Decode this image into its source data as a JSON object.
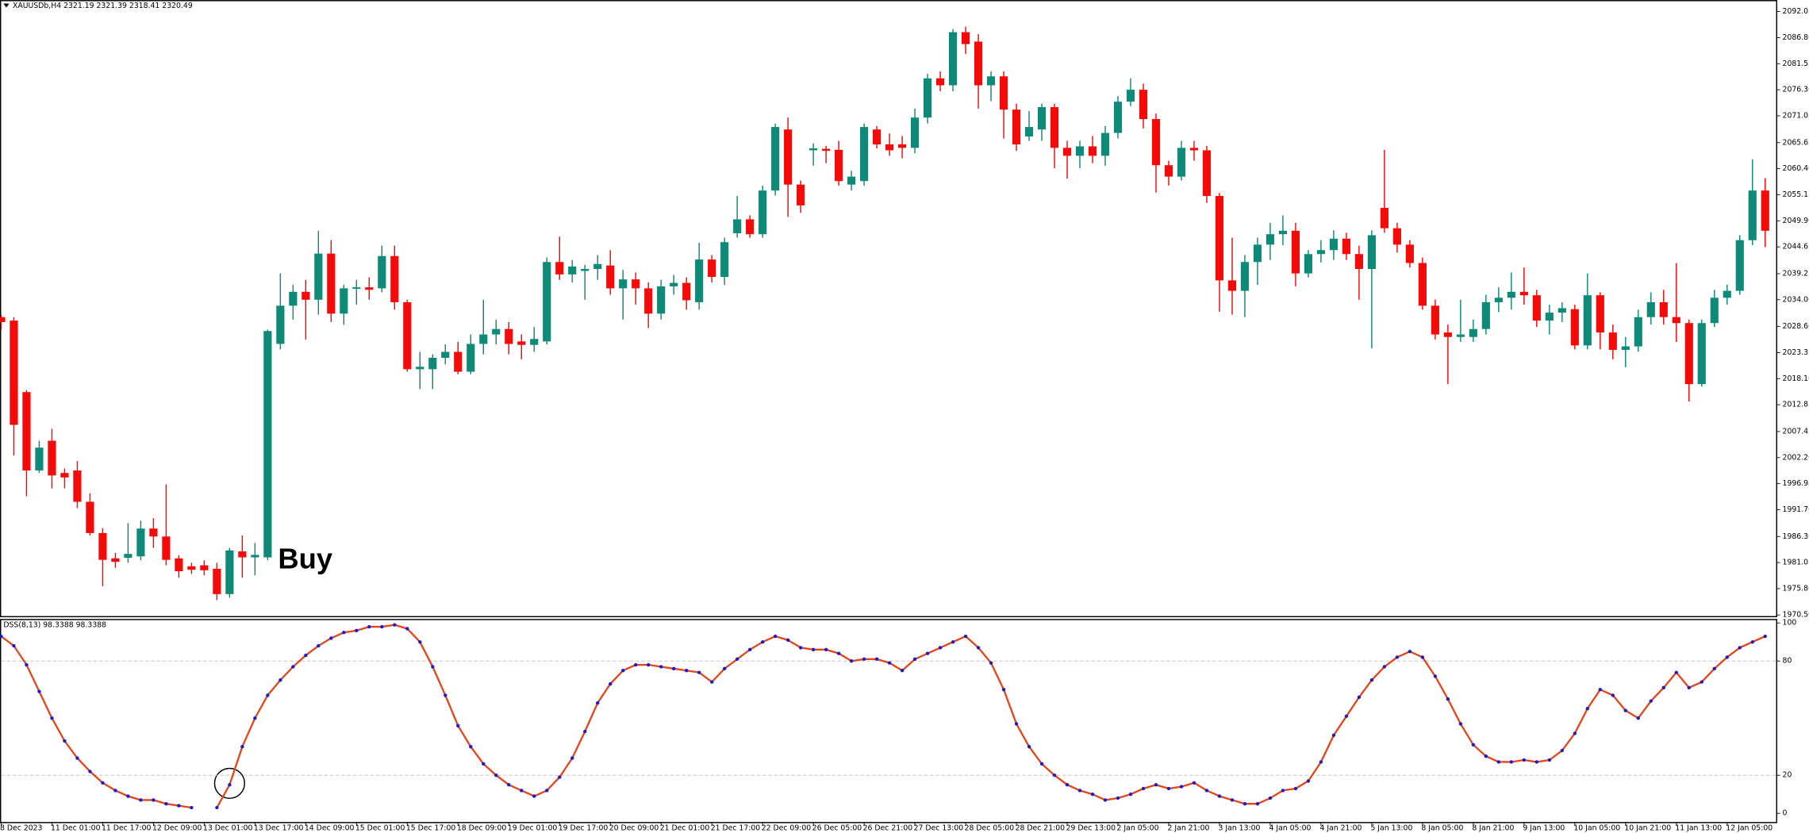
{
  "chart_data": [
    {
      "type": "candlestick",
      "title": "XAUUSDb,H4  2321.19 2321.39 2318.41 2320.49",
      "annotations": [
        "Buy"
      ],
      "up_color": "#0f8a78",
      "down_color": "#f50a0a",
      "categories": [
        "8 Dec 2023",
        null,
        null,
        null,
        "11 Dec 01:00",
        null,
        null,
        null,
        "11 Dec 17:00",
        null,
        null,
        null,
        "12 Dec 09:00",
        null,
        null,
        null,
        "13 Dec 01:00",
        null,
        null,
        null,
        "13 Dec 17:00",
        null,
        null,
        null,
        "14 Dec 09:00",
        null,
        null,
        null,
        "15 Dec 01:00",
        null,
        null,
        null,
        "15 Dec 17:00",
        null,
        null,
        null,
        "18 Dec 09:00",
        null,
        null,
        null,
        "19 Dec 01:00",
        null,
        null,
        null,
        "19 Dec 17:00",
        null,
        null,
        null,
        "20 Dec 09:00",
        null,
        null,
        null,
        "21 Dec 01:00",
        null,
        null,
        null,
        "21 Dec 17:00",
        null,
        null,
        null,
        "22 Dec 09:00",
        null,
        null,
        null,
        "26 Dec 05:00",
        null,
        null,
        null,
        "26 Dec 21:00",
        null,
        null,
        null,
        "27 Dec 13:00",
        null,
        null,
        null,
        "28 Dec 05:00",
        null,
        null,
        null,
        "28 Dec 21:00",
        null,
        null,
        null,
        "29 Dec 13:00",
        null,
        null,
        null,
        "2 Jan 05:00",
        null,
        null,
        null,
        "2 Jan 21:00",
        null,
        null,
        null,
        "3 Jan 13:00",
        null,
        null,
        null,
        "4 Jan 05:00",
        null,
        null,
        null,
        "4 Jan 21:00",
        null,
        null,
        null,
        "5 Jan 13:00",
        null,
        null,
        null,
        "8 Jan 05:00",
        null,
        null,
        null,
        "8 Jan 21:00",
        null,
        null,
        null,
        "9 Jan 13:00",
        null,
        null,
        null,
        "10 Jan 05:00",
        null,
        null,
        null,
        "10 Jan 21:00",
        null,
        null,
        null,
        "11 Jan 13:00",
        null,
        null,
        null,
        "12 Jan 05:00",
        null,
        null,
        null
      ],
      "open": [
        2030.5,
        2029.8,
        2015.4,
        1999.6,
        2005.6,
        1999.1,
        1999.6,
        1993.3,
        1987.0,
        1981.9,
        1982.0,
        1982.3,
        1987.9,
        1986.3,
        1981.9,
        1980.3,
        1980.5,
        1979.8,
        1974.7,
        1983.3,
        1982.1,
        1982.1,
        2025.1,
        2032.8,
        2035.6,
        2034.0,
        2043.3,
        2031.2,
        2036.2,
        2036.5,
        2036.3,
        2042.8,
        2033.5,
        2020.0,
        2020.0,
        2022.3,
        2023.5,
        2019.5,
        2025.1,
        2027.0,
        2028.1,
        2025.6,
        2024.9,
        2025.6,
        2041.6,
        2039.1,
        2039.8,
        2040.2,
        2040.9,
        2036.3,
        2038.1,
        2036.3,
        2031.2,
        2036.7,
        2037.4,
        2033.5,
        2042.1,
        2038.6,
        2047.4,
        2050.2,
        2047.2,
        2056.0,
        2068.3,
        2057.2,
        2064.1,
        2064.4,
        2064.2,
        2057.2,
        2057.9,
        2068.3,
        2065.3,
        2065.3,
        2064.6,
        2070.7,
        2078.6,
        2077.2,
        2087.9,
        2086.0,
        2077.2,
        2079.0,
        2072.3,
        2066.9,
        2068.3,
        2072.8,
        2064.6,
        2063.0,
        2064.9,
        2063.0,
        2067.6,
        2073.9,
        2076.3,
        2070.4,
        2061.1,
        2058.8,
        2064.6,
        2064.1,
        2054.9,
        2037.9,
        2035.8,
        2041.6,
        2045.1,
        2047.2,
        2047.9,
        2039.3,
        2043.2,
        2044.0,
        2046.3,
        2043.2,
        2040.2,
        2052.5,
        2048.4,
        2045.1,
        2041.4,
        2032.8,
        2027.4,
        2026.5,
        2026.5,
        2028.1,
        2033.5,
        2034.4,
        2035.6,
        2034.9,
        2029.8,
        2031.4,
        2032.1,
        2024.8,
        2034.9,
        2027.4,
        2023.9,
        2024.6,
        2030.5,
        2033.5,
        2030.5,
        2029.3,
        2017.0,
        2029.3,
        2034.4,
        2035.8,
        2046.0,
        2056.0
      ],
      "high": [
        2031.0,
        2030.5,
        2015.8,
        2005.6,
        2008.0,
        2000.0,
        2001.5,
        1995.0,
        1988.0,
        1983.0,
        1989.0,
        1989.5,
        1990.0,
        1996.8,
        1982.5,
        1981.0,
        1981.5,
        1981.0,
        1984.0,
        1986.5,
        1985.0,
        2028.0,
        2039.3,
        2037.0,
        2038.0,
        2047.9,
        2046.0,
        2037.0,
        2038.0,
        2038.5,
        2044.9,
        2044.9,
        2034.0,
        2023.5,
        2023.0,
        2025.0,
        2025.5,
        2027.0,
        2034.0,
        2030.0,
        2029.5,
        2027.0,
        2028.5,
        2042.5,
        2046.7,
        2042.0,
        2041.0,
        2043.0,
        2044.0,
        2040.0,
        2039.5,
        2037.5,
        2038.0,
        2039.0,
        2038.5,
        2045.5,
        2043.0,
        2046.5,
        2054.9,
        2051.0,
        2057.0,
        2069.5,
        2070.7,
        2058.0,
        2065.5,
        2065.0,
        2066.0,
        2060.0,
        2069.5,
        2069.0,
        2067.5,
        2067.0,
        2072.5,
        2079.5,
        2080.0,
        2088.5,
        2089.0,
        2087.5,
        2080.0,
        2080.0,
        2073.5,
        2072.0,
        2073.5,
        2073.5,
        2066.0,
        2066.0,
        2067.0,
        2069.0,
        2075.0,
        2078.6,
        2077.5,
        2071.5,
        2062.0,
        2066.0,
        2066.0,
        2065.0,
        2055.5,
        2046.5,
        2043.0,
        2046.5,
        2049.5,
        2051.0,
        2049.5,
        2044.0,
        2046.0,
        2048.0,
        2047.5,
        2044.9,
        2048.0,
        2064.2,
        2049.5,
        2046.0,
        2042.5,
        2034.0,
        2029.0,
        2034.0,
        2030.0,
        2035.0,
        2036.5,
        2039.5,
        2040.5,
        2036.0,
        2033.0,
        2033.5,
        2033.0,
        2039.3,
        2035.5,
        2029.0,
        2026.5,
        2032.0,
        2035.5,
        2036.0,
        2041.4,
        2030.0,
        2030.0,
        2036.0,
        2037.0,
        2047.0,
        2062.3,
        2058.5
      ],
      "low": [
        2028.0,
        2002.6,
        1994.4,
        1999.1,
        1996.0,
        1996.0,
        1992.0,
        1986.5,
        1976.3,
        1980.0,
        1981.0,
        1981.5,
        1984.0,
        1980.5,
        1978.0,
        1978.8,
        1978.5,
        1973.5,
        1974.0,
        1978.0,
        1978.5,
        1981.5,
        2024.0,
        2030.0,
        2026.0,
        2031.0,
        2029.5,
        2029.0,
        2033.0,
        2034.0,
        2035.5,
        2032.0,
        2019.5,
        2016.0,
        2016.0,
        2021.0,
        2019.0,
        2019.0,
        2023.0,
        2025.0,
        2023.0,
        2022.0,
        2023.5,
        2025.0,
        2038.0,
        2037.5,
        2034.0,
        2038.0,
        2035.0,
        2030.0,
        2033.0,
        2028.3,
        2030.0,
        2035.0,
        2032.0,
        2032.0,
        2037.5,
        2037.0,
        2046.5,
        2046.5,
        2046.5,
        2055.0,
        2050.7,
        2051.5,
        2061.0,
        2061.5,
        2057.0,
        2056.0,
        2057.0,
        2064.5,
        2063.0,
        2062.5,
        2063.5,
        2069.5,
        2076.0,
        2076.0,
        2083.5,
        2072.5,
        2074.0,
        2066.5,
        2064.0,
        2066.0,
        2066.0,
        2060.5,
        2058.4,
        2060.5,
        2061.5,
        2061.0,
        2066.5,
        2073.0,
        2068.5,
        2055.6,
        2057.0,
        2058.0,
        2062.0,
        2053.5,
        2031.6,
        2031.0,
        2030.5,
        2037.0,
        2042.0,
        2045.0,
        2036.7,
        2038.5,
        2041.5,
        2042.0,
        2042.0,
        2034.0,
        2024.2,
        2047.5,
        2043.5,
        2040.5,
        2032.0,
        2026.0,
        2017.0,
        2025.5,
        2025.5,
        2027.0,
        2031.5,
        2032.0,
        2033.0,
        2028.5,
        2027.0,
        2029.5,
        2024.0,
        2024.0,
        2024.0,
        2022.0,
        2020.4,
        2023.5,
        2029.0,
        2029.0,
        2025.5,
        2013.5,
        2016.5,
        2028.5,
        2033.0,
        2035.0,
        2045.0,
        2044.6
      ],
      "close": [
        2029.5,
        2008.8,
        1999.6,
        2004.2,
        1998.6,
        1998.2,
        1993.3,
        1987.0,
        1981.6,
        1981.2,
        1982.8,
        1987.9,
        1986.3,
        1981.6,
        1979.3,
        1979.6,
        1979.5,
        1974.7,
        1983.5,
        1982.1,
        1982.6,
        2027.7,
        2032.8,
        2035.6,
        2034.0,
        2043.3,
        2031.2,
        2036.3,
        2036.5,
        2036.0,
        2042.8,
        2033.5,
        2020.0,
        2020.5,
        2022.3,
        2023.5,
        2019.5,
        2025.1,
        2027.0,
        2028.1,
        2025.1,
        2024.9,
        2026.1,
        2041.6,
        2039.1,
        2040.7,
        2040.2,
        2041.2,
        2036.3,
        2038.1,
        2036.3,
        2031.2,
        2036.7,
        2037.4,
        2033.9,
        2042.1,
        2038.6,
        2045.6,
        2050.2,
        2047.2,
        2056.0,
        2068.8,
        2057.2,
        2053.0,
        2064.5,
        2064.0,
        2057.9,
        2058.8,
        2068.8,
        2065.3,
        2064.1,
        2064.6,
        2070.7,
        2078.6,
        2077.2,
        2087.9,
        2085.5,
        2077.2,
        2079.0,
        2072.3,
        2065.3,
        2068.8,
        2072.8,
        2064.6,
        2063.0,
        2064.9,
        2063.0,
        2067.6,
        2073.9,
        2076.3,
        2070.4,
        2061.1,
        2058.8,
        2064.6,
        2064.1,
        2054.9,
        2037.9,
        2035.8,
        2041.6,
        2045.1,
        2047.2,
        2047.9,
        2039.3,
        2043.2,
        2044.0,
        2046.3,
        2043.2,
        2040.2,
        2047.0,
        2048.4,
        2045.1,
        2041.4,
        2032.8,
        2027.0,
        2026.5,
        2027.0,
        2028.1,
        2033.5,
        2034.4,
        2035.6,
        2034.9,
        2029.8,
        2031.4,
        2032.3,
        2024.8,
        2034.9,
        2027.4,
        2023.9,
        2024.6,
        2030.5,
        2033.5,
        2030.5,
        2029.3,
        2017.0,
        2029.3,
        2034.4,
        2035.8,
        2046.0,
        2056.0,
        2047.9
      ],
      "ylim": [
        1970.04,
        2094.37
      ],
      "yticks": [
        2092.05,
        {
          "value": 2086.8,
          "label": "2086.80"
        },
        2081.55,
        {
          "value": 2076.3,
          "label": "2076.30"
        },
        2071.05,
        2065.65,
        {
          "value": 2060.4,
          "label": "2060.40"
        },
        2055.15,
        {
          "value": 2049.9,
          "label": "2049.90"
        },
        2044.65,
        2039.25,
        {
          "value": 2034,
          "label": "2034.00"
        },
        {
          "value": 2028.6,
          "label": "2028.60"
        },
        2023.35,
        {
          "value": 2018.1,
          "label": "2018.10"
        },
        2012.85,
        2007.45,
        {
          "value": 2002.2,
          "label": "2002.20"
        },
        1996.95,
        {
          "value": 1991.7,
          "label": "1991.70"
        },
        {
          "value": 1986.3,
          "label": "1986.30"
        },
        1981.05,
        {
          "value": 1975.8,
          "label": "1975.80"
        },
        {
          "value": 1970.5,
          "label": "1970.50"
        }
      ]
    },
    {
      "type": "line",
      "title": "DSS(8,13) 98.3388 98.3388",
      "color": "#e2461c",
      "marker_color": "#1b1bd0",
      "values": [
        93,
        88,
        78,
        64,
        50,
        38,
        29,
        22,
        16,
        12,
        9,
        7,
        7,
        5,
        4,
        3,
        null,
        3,
        15,
        35,
        50,
        62,
        70,
        77,
        83,
        88,
        92,
        95,
        96,
        98,
        98,
        99,
        97,
        90,
        77,
        62,
        46,
        35,
        26,
        20,
        15,
        12,
        9,
        12,
        19,
        29,
        43,
        58,
        68,
        75,
        78,
        78,
        77,
        76,
        75,
        74,
        69,
        76,
        81,
        86,
        90,
        93,
        91,
        87,
        86,
        86,
        84,
        80,
        81,
        81,
        79,
        75,
        81,
        84,
        87,
        90,
        93,
        87,
        79,
        65,
        47,
        35,
        26,
        20,
        15,
        12,
        10,
        7,
        8,
        10,
        13,
        15,
        13,
        14,
        16,
        12,
        9,
        7,
        5,
        5,
        8,
        12,
        13,
        17,
        27,
        41,
        51,
        61,
        70,
        77,
        82,
        85,
        82,
        72,
        60,
        47,
        36,
        30,
        27,
        27,
        28,
        27,
        28,
        33,
        42,
        55,
        65,
        62,
        54,
        50,
        59,
        66,
        74,
        66,
        69,
        76,
        82,
        87,
        90,
        93
      ],
      "ylim": [
        -4.85,
        101.8
      ],
      "yticks": [
        100,
        80,
        20,
        0
      ],
      "levels": [
        80,
        20
      ]
    }
  ]
}
